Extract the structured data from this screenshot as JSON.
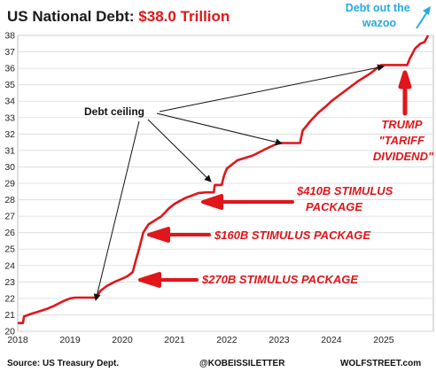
{
  "title": {
    "prefix": "US National Debt: ",
    "highlight": "$38.0 Trillion"
  },
  "colors": {
    "line": "#e0161b",
    "grid": "#d9d9d9",
    "annotation_arrow": "#e0161b",
    "wazoo_arrow": "#27a9e1"
  },
  "annotations": {
    "debt_ceiling": "Debt ceiling",
    "stimulus_410": [
      "$410B STIMULUS",
      "PACKAGE"
    ],
    "stimulus_160": "$160B STIMULUS PACKAGE",
    "stimulus_270": "$270B STIMULUS PACKAGE",
    "trump": [
      "TRUMP",
      "\"TARIFF",
      "DIVIDEND\""
    ],
    "wazoo": [
      "Debt out the",
      "wazoo"
    ]
  },
  "footer": {
    "source": "Source: US Treasury Dept.",
    "handle": "@KOBEISSILETTER",
    "site": "WOLFSTREET.com"
  },
  "chart_data": {
    "type": "line",
    "title": "US National Debt: $38.0 Trillion",
    "xlabel": "",
    "ylabel": "",
    "xlim": [
      2018.0,
      2025.95
    ],
    "ylim": [
      20,
      38
    ],
    "x_ticks": [
      2018,
      2019,
      2020,
      2021,
      2022,
      2023,
      2024,
      2025
    ],
    "y_ticks": [
      20,
      21,
      22,
      23,
      24,
      25,
      26,
      27,
      28,
      29,
      30,
      31,
      32,
      33,
      34,
      35,
      36,
      37,
      38
    ],
    "grid": "horizontal",
    "legend": "none",
    "series": [
      {
        "values": [
          [
            2018.0,
            20.5
          ],
          [
            2018.1,
            20.5
          ],
          [
            2018.12,
            20.9
          ],
          [
            2018.25,
            21.05
          ],
          [
            2018.4,
            21.2
          ],
          [
            2018.55,
            21.35
          ],
          [
            2018.7,
            21.55
          ],
          [
            2018.85,
            21.8
          ],
          [
            2019.0,
            22.0
          ],
          [
            2019.1,
            22.05
          ],
          [
            2019.5,
            22.05
          ],
          [
            2019.58,
            22.45
          ],
          [
            2019.7,
            22.75
          ],
          [
            2019.85,
            23.0
          ],
          [
            2020.0,
            23.2
          ],
          [
            2020.1,
            23.35
          ],
          [
            2020.2,
            23.6
          ],
          [
            2020.25,
            24.2
          ],
          [
            2020.32,
            25.0
          ],
          [
            2020.4,
            26.0
          ],
          [
            2020.5,
            26.5
          ],
          [
            2020.6,
            26.7
          ],
          [
            2020.75,
            27.0
          ],
          [
            2020.9,
            27.5
          ],
          [
            2021.0,
            27.75
          ],
          [
            2021.2,
            28.1
          ],
          [
            2021.45,
            28.4
          ],
          [
            2021.6,
            28.45
          ],
          [
            2021.75,
            28.45
          ],
          [
            2021.77,
            28.9
          ],
          [
            2021.9,
            28.9
          ],
          [
            2021.95,
            29.5
          ],
          [
            2022.0,
            29.9
          ],
          [
            2022.2,
            30.4
          ],
          [
            2022.5,
            30.7
          ],
          [
            2022.75,
            31.1
          ],
          [
            2022.95,
            31.4
          ],
          [
            2023.0,
            31.45
          ],
          [
            2023.4,
            31.45
          ],
          [
            2023.45,
            32.2
          ],
          [
            2023.6,
            32.8
          ],
          [
            2023.75,
            33.3
          ],
          [
            2023.9,
            33.7
          ],
          [
            2024.0,
            34.0
          ],
          [
            2024.25,
            34.6
          ],
          [
            2024.5,
            35.2
          ],
          [
            2024.75,
            35.7
          ],
          [
            2024.95,
            36.2
          ],
          [
            2025.0,
            36.2
          ],
          [
            2025.45,
            36.2
          ],
          [
            2025.5,
            36.6
          ],
          [
            2025.6,
            37.2
          ],
          [
            2025.7,
            37.5
          ],
          [
            2025.78,
            37.6
          ],
          [
            2025.85,
            38.0
          ]
        ]
      }
    ]
  }
}
